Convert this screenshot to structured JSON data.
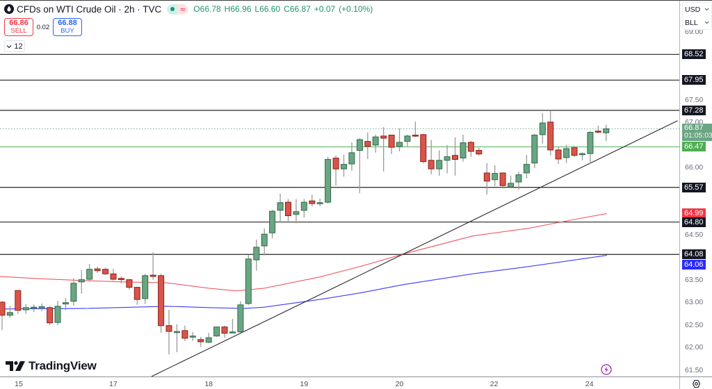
{
  "header": {
    "title": "CFDs on WTI Crude Oil · 2h · TVC",
    "symbol_icon": "oil-drop-icon",
    "status": {
      "market_icon": "market-open-dot",
      "data_icon": "delayed-data-icon",
      "data_glyph": "≈"
    },
    "ohlc": {
      "o_label": "O",
      "o": "66.78",
      "h_label": "H",
      "h": "66.96",
      "l_label": "L",
      "l": "66.60",
      "c_label": "C",
      "c": "66.87",
      "change": "+0.07",
      "change_pct": "(+0.10%)"
    }
  },
  "trade": {
    "sell": {
      "price": "66.86",
      "label": "SELL"
    },
    "spread": "0.02",
    "buy": {
      "price": "66.88",
      "label": "BUY"
    }
  },
  "legend": {
    "indicators_count": "12",
    "toggle_icon": "chevron-down-icon"
  },
  "units": {
    "currency": "USD",
    "unit": "BLL"
  },
  "branding": {
    "logo_text": "TradingView"
  },
  "colors": {
    "up_fill": "#6ba583",
    "up_border": "#2f6b47",
    "down_fill": "#d9544a",
    "down_border": "#8a2119",
    "wick": "#9a9a9a",
    "accent_purple": "#9c27b0"
  },
  "price_axis": {
    "ticks": [
      {
        "label": "69.00",
        "value": 69.0
      },
      {
        "label": "67.50",
        "value": 67.5
      },
      {
        "label": "67.00",
        "value": 67.0
      },
      {
        "label": "66.00",
        "value": 66.0
      },
      {
        "label": "65.50",
        "value": 65.5
      },
      {
        "label": "64.50",
        "value": 64.5
      },
      {
        "label": "63.50",
        "value": 63.5
      },
      {
        "label": "63.00",
        "value": 63.0
      },
      {
        "label": "62.50",
        "value": 62.5
      },
      {
        "label": "62.00",
        "value": 62.0
      },
      {
        "label": "61.50",
        "value": 61.5
      }
    ],
    "badges": [
      {
        "label": "68.52",
        "price": 68.52,
        "bg": "#131722",
        "name": "level-badge"
      },
      {
        "label": "67.95",
        "price": 67.95,
        "bg": "#131722",
        "name": "level-badge"
      },
      {
        "label": "67.28",
        "price": 67.28,
        "bg": "#131722",
        "name": "level-badge"
      },
      {
        "label": "66.87",
        "sub": "01:05:03",
        "price": 66.87,
        "bg": "#6ba583",
        "name": "last-price-badge"
      },
      {
        "label": "66.47",
        "price": 66.47,
        "bg": "#4caf50",
        "name": "green-level-badge"
      },
      {
        "label": "65.57",
        "price": 65.57,
        "bg": "#131722",
        "name": "level-badge"
      },
      {
        "label": "64.99",
        "price": 64.99,
        "bg": "#f23645",
        "name": "red-ma-badge"
      },
      {
        "label": "64.80",
        "price": 64.8,
        "bg": "#131722",
        "name": "level-badge"
      },
      {
        "label": "64.08",
        "price": 64.08,
        "bg": "#131722",
        "name": "level-badge"
      },
      {
        "label": "64.06",
        "price": 64.06,
        "bg": "#2a2aff",
        "shift": 13,
        "name": "blue-ma-badge"
      }
    ]
  },
  "chart_data": {
    "type": "candlestick",
    "title": "CFDs on WTI Crude Oil · 2h · TVC",
    "interval": "2h",
    "xlabel": "",
    "ylabel": "USD / BLL",
    "xlim": [
      -0.26,
      85.21
    ],
    "ylim": [
      61.37,
      69.73
    ],
    "grid": false,
    "current_price": 66.87,
    "countdown": "01:05:03",
    "x_ticks": [
      {
        "label": "15",
        "index": 2.1
      },
      {
        "label": "17",
        "index": 14.0
      },
      {
        "label": "18",
        "index": 26.0
      },
      {
        "label": "19",
        "index": 38.0
      },
      {
        "label": "20",
        "index": 50.0
      },
      {
        "label": "22",
        "index": 61.9
      },
      {
        "label": "24",
        "index": 73.9
      }
    ],
    "candles_format": [
      "open",
      "high",
      "low",
      "close"
    ],
    "candles": [
      [
        63.02,
        63.05,
        62.4,
        62.73
      ],
      [
        62.73,
        62.94,
        62.67,
        62.79
      ],
      [
        63.28,
        63.29,
        62.76,
        62.84
      ],
      [
        62.85,
        62.98,
        62.76,
        62.9
      ],
      [
        62.9,
        62.97,
        62.8,
        62.91
      ],
      [
        62.91,
        62.99,
        62.82,
        62.92
      ],
      [
        62.9,
        62.94,
        62.51,
        62.56
      ],
      [
        62.57,
        63.05,
        62.51,
        62.93
      ],
      [
        62.98,
        63.11,
        62.84,
        63.01
      ],
      [
        63.04,
        63.55,
        62.94,
        63.44
      ],
      [
        63.47,
        63.73,
        63.21,
        63.52
      ],
      [
        63.53,
        63.87,
        63.48,
        63.75
      ],
      [
        63.76,
        63.81,
        63.67,
        63.72
      ],
      [
        63.75,
        63.79,
        63.62,
        63.65
      ],
      [
        63.65,
        63.76,
        63.5,
        63.53
      ],
      [
        63.55,
        63.59,
        63.44,
        63.52
      ],
      [
        63.52,
        63.53,
        63.3,
        63.35
      ],
      [
        63.35,
        63.36,
        62.96,
        63.08
      ],
      [
        63.1,
        63.65,
        62.98,
        63.61
      ],
      [
        63.62,
        64.13,
        63.52,
        63.59
      ],
      [
        63.61,
        63.65,
        62.34,
        62.5
      ],
      [
        62.5,
        62.85,
        61.86,
        62.37
      ],
      [
        62.36,
        62.53,
        61.91,
        62.37
      ],
      [
        62.39,
        62.5,
        62.16,
        62.22
      ],
      [
        62.25,
        62.36,
        62.16,
        62.27
      ],
      [
        62.19,
        62.25,
        62.03,
        62.14
      ],
      [
        62.13,
        62.34,
        62.11,
        62.23
      ],
      [
        62.27,
        62.48,
        62.25,
        62.47
      ],
      [
        62.47,
        62.5,
        62.23,
        62.33
      ],
      [
        62.35,
        62.65,
        62.34,
        62.36
      ],
      [
        62.36,
        63.04,
        62.35,
        62.96
      ],
      [
        62.99,
        64.07,
        62.96,
        63.98
      ],
      [
        63.96,
        64.41,
        63.72,
        64.24
      ],
      [
        64.27,
        64.66,
        64.06,
        64.53
      ],
      [
        64.56,
        65.07,
        64.44,
        65.04
      ],
      [
        65.06,
        65.43,
        64.8,
        65.23
      ],
      [
        65.24,
        65.31,
        64.8,
        64.94
      ],
      [
        64.97,
        65.31,
        64.77,
        65.03
      ],
      [
        65.06,
        65.31,
        64.9,
        65.24
      ],
      [
        65.27,
        65.41,
        65.15,
        65.21
      ],
      [
        65.22,
        65.32,
        65.15,
        65.23
      ],
      [
        65.24,
        66.25,
        65.21,
        66.19
      ],
      [
        66.22,
        66.28,
        65.61,
        65.98
      ],
      [
        65.98,
        66.29,
        65.81,
        66.08
      ],
      [
        66.09,
        66.57,
        65.94,
        66.34
      ],
      [
        66.39,
        66.66,
        65.44,
        66.63
      ],
      [
        66.59,
        66.79,
        66.2,
        66.48
      ],
      [
        66.51,
        66.74,
        66.34,
        66.69
      ],
      [
        66.71,
        66.91,
        65.92,
        66.66
      ],
      [
        66.73,
        66.74,
        66.31,
        66.46
      ],
      [
        66.48,
        66.88,
        66.37,
        66.57
      ],
      [
        66.59,
        66.74,
        66.46,
        66.71
      ],
      [
        66.73,
        67.03,
        66.69,
        66.71
      ],
      [
        66.74,
        66.76,
        66.11,
        66.14
      ],
      [
        66.17,
        66.62,
        65.86,
        65.98
      ],
      [
        65.98,
        66.39,
        65.83,
        66.17
      ],
      [
        66.17,
        66.51,
        65.88,
        66.25
      ],
      [
        66.28,
        66.68,
        65.83,
        66.19
      ],
      [
        66.22,
        66.74,
        66.14,
        66.56
      ],
      [
        66.57,
        66.6,
        66.25,
        66.37
      ],
      [
        66.39,
        66.45,
        66.28,
        66.31
      ],
      [
        65.89,
        66.11,
        65.41,
        65.71
      ],
      [
        65.74,
        66.06,
        65.6,
        65.88
      ],
      [
        65.89,
        65.9,
        65.54,
        65.61
      ],
      [
        65.58,
        65.83,
        65.57,
        65.66
      ],
      [
        65.69,
        65.92,
        65.52,
        65.85
      ],
      [
        65.89,
        66.29,
        65.77,
        66.08
      ],
      [
        66.11,
        66.76,
        66.0,
        66.73
      ],
      [
        66.74,
        67.22,
        66.54,
        67.0
      ],
      [
        67.02,
        67.28,
        66.28,
        66.4
      ],
      [
        66.4,
        66.46,
        66.09,
        66.2
      ],
      [
        66.23,
        66.51,
        66.11,
        66.43
      ],
      [
        66.45,
        66.49,
        66.25,
        66.28
      ],
      [
        66.31,
        66.35,
        66.17,
        66.32
      ],
      [
        66.32,
        66.82,
        66.09,
        66.79
      ],
      [
        66.82,
        66.94,
        66.77,
        66.8
      ],
      [
        66.78,
        66.96,
        66.6,
        66.87
      ]
    ],
    "series": [
      {
        "name": "moving-average-red-line",
        "color": "#ee5a64",
        "last_value": 64.99,
        "points": [
          [
            -0.26,
            63.59
          ],
          [
            5,
            63.54
          ],
          [
            10.2,
            63.5
          ],
          [
            15.5,
            63.47
          ],
          [
            20.7,
            63.45
          ],
          [
            26,
            63.33
          ],
          [
            29.5,
            63.27
          ],
          [
            33,
            63.33
          ],
          [
            40,
            63.58
          ],
          [
            45.2,
            63.82
          ],
          [
            50.5,
            64.09
          ],
          [
            59.2,
            64.49
          ],
          [
            66.2,
            64.66
          ],
          [
            70.6,
            64.81
          ],
          [
            76.1,
            64.99
          ]
        ]
      },
      {
        "name": "moving-average-blue-line",
        "color": "#3a3aff",
        "last_value": 64.06,
        "points": [
          [
            -0.26,
            62.87
          ],
          [
            10.2,
            62.88
          ],
          [
            20.7,
            62.93
          ],
          [
            26,
            62.9
          ],
          [
            30.4,
            62.88
          ],
          [
            33,
            62.91
          ],
          [
            40,
            63.08
          ],
          [
            45.2,
            63.23
          ],
          [
            50.5,
            63.41
          ],
          [
            59.2,
            63.65
          ],
          [
            66.2,
            63.81
          ],
          [
            76.1,
            64.06
          ]
        ]
      }
    ],
    "levels": [
      {
        "price": 68.52,
        "color": "#3a3a3a",
        "style": "solid",
        "name": "horizontal-level-line"
      },
      {
        "price": 67.95,
        "color": "#3a3a3a",
        "style": "solid",
        "name": "horizontal-level-line"
      },
      {
        "price": 67.28,
        "color": "#3a3a3a",
        "style": "solid",
        "name": "horizontal-level-line"
      },
      {
        "price": 66.87,
        "color": "#6fa892",
        "style": "dotted",
        "name": "last-price-line",
        "width": 1
      },
      {
        "price": 66.47,
        "color": "#4caf50",
        "style": "solid",
        "name": "green-level-line",
        "width": 1
      },
      {
        "price": 65.57,
        "color": "#3a3a3a",
        "style": "solid",
        "name": "horizontal-level-line"
      },
      {
        "price": 64.8,
        "color": "#3a3a3a",
        "style": "solid",
        "name": "horizontal-level-line"
      },
      {
        "price": 64.08,
        "color": "#3a3a3a",
        "style": "solid",
        "name": "horizontal-level-line"
      }
    ],
    "trendline": {
      "color": "#2a2a2a",
      "points": [
        [
          18.8,
          61.37
        ],
        [
          85.0,
          67.05
        ]
      ]
    }
  }
}
